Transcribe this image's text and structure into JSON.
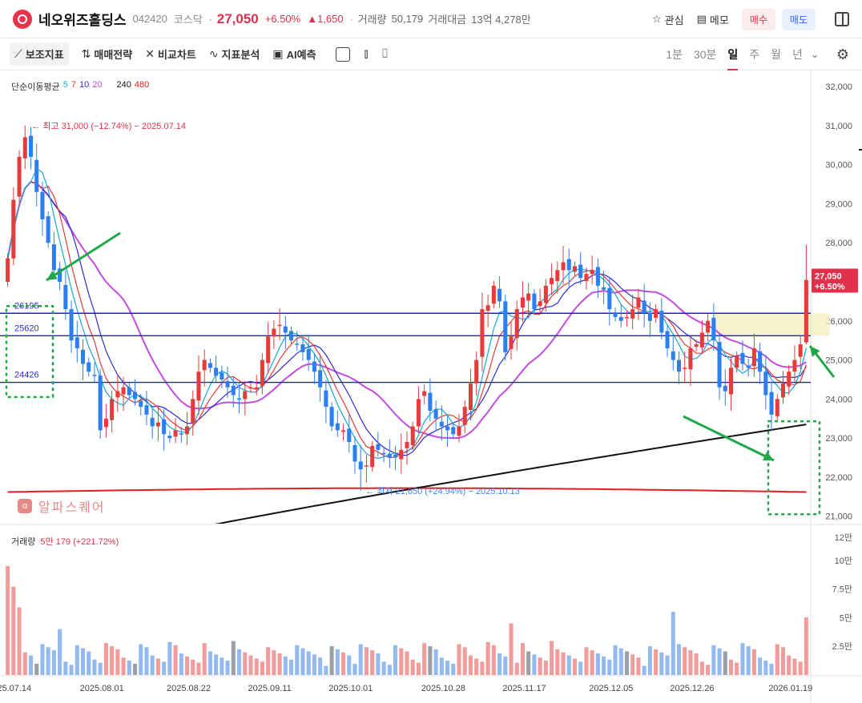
{
  "header": {
    "name": "네오위즈홀딩스",
    "code": "042420",
    "market": "코스닥",
    "price": "27,050",
    "change_pct": "+6.50%",
    "change_abs": "▲1,650",
    "volume_label": "거래량",
    "volume_value": "50,179",
    "amount_label": "거래대금",
    "amount_value": "13억 4,278만",
    "watch_label": "관심",
    "memo_label": "메모",
    "buy_label": "매수",
    "sell_label": "매도"
  },
  "toolbar": {
    "items": [
      "보조지표",
      "매매전략",
      "비교차트",
      "지표분석",
      "AI예측"
    ],
    "periods": [
      "1분",
      "30분",
      "일",
      "주",
      "월",
      "년"
    ],
    "active_period": "일"
  },
  "legend": {
    "ma_label": "단순이동평균",
    "ma_short": [
      "5",
      "7",
      "10",
      "20"
    ],
    "ma_long": [
      "240",
      "480"
    ],
    "ma_colors": [
      "#19a7d9",
      "#e63a35",
      "#2d2dcc",
      "#c24de0",
      "#111111",
      "#e01e1e"
    ],
    "volume_label": "거래량",
    "volume_value": "5만 179 (+221.72%)"
  },
  "watermark": {
    "text": "알파스퀘어"
  },
  "colors": {
    "up": "#e63b3b",
    "down": "#2b7ff0",
    "vol_up": "#f29b9b",
    "vol_down": "#94b9ee",
    "vol_flat": "#9aa0a6"
  },
  "chart_data": {
    "type": "candlestick",
    "ylim": [
      20800,
      32400
    ],
    "y_ticks": [
      "32,000",
      "31,000",
      "30,000",
      "29,000",
      "28,000",
      "27,000",
      "26,000",
      "25,000",
      "24,000",
      "23,000",
      "22,000",
      "21,000"
    ],
    "y_tick_values": [
      32000,
      31000,
      30000,
      29000,
      28000,
      27000,
      26000,
      25000,
      24000,
      23000,
      22000,
      21000
    ],
    "x_labels": [
      "2025.07.14",
      "2025.08.01",
      "2025.08.22",
      "2025.09.11",
      "2025.10.01",
      "2025.10.28",
      "2025.11.17",
      "2025.12.05",
      "2025.12.26",
      "2026.01.19"
    ],
    "x_label_index": [
      0,
      16,
      31,
      45,
      59,
      75,
      89,
      104,
      118,
      135
    ],
    "high_annotation": "최고 31,000 (−12.74%) − 2025.07.14",
    "low_annotation": "최저 21,650 (+24.94%) − 2025.10.13",
    "price_label": "27,050",
    "price_change_label": "+6.50%",
    "current_price": 27050,
    "levels": [
      {
        "label": "26195",
        "value": 26195
      },
      {
        "label": "25620",
        "value": 25620
      },
      {
        "label": "24426",
        "value": 24426
      }
    ],
    "zone": {
      "from_index": 122,
      "to_index": 142,
      "low": 25620,
      "high": 26195
    },
    "ma240": {
      "start": 19600,
      "end": 23350
    },
    "ma480": {
      "start": 21620,
      "mid": 21720,
      "end": 21620
    },
    "closes": [
      27600,
      29100,
      30200,
      30700,
      30200,
      29300,
      28600,
      28000,
      27300,
      27000,
      26300,
      25500,
      25300,
      24900,
      24700,
      24600,
      23200,
      23500,
      24000,
      24200,
      24300,
      24100,
      24000,
      23800,
      23600,
      23300,
      23400,
      23100,
      23000,
      23200,
      23100,
      23300,
      24000,
      24700,
      25000,
      24800,
      24600,
      24500,
      24300,
      24100,
      24000,
      24200,
      24300,
      24300,
      25000,
      25600,
      25800,
      25900,
      25700,
      25500,
      25400,
      25200,
      25000,
      24700,
      24300,
      23800,
      23300,
      23200,
      23200,
      22900,
      22400,
      22200,
      22300,
      22800,
      22700,
      22600,
      22500,
      22500,
      22700,
      22900,
      23300,
      24000,
      24200,
      23700,
      23500,
      23300,
      23200,
      23100,
      23300,
      23800,
      24400,
      25000,
      26300,
      26400,
      26900,
      26500,
      25200,
      25600,
      26300,
      26600,
      26700,
      26300,
      26500,
      26900,
      27100,
      27300,
      27500,
      27300,
      27400,
      27100,
      27200,
      27300,
      26900,
      26800,
      26300,
      26100,
      26000,
      26100,
      26300,
      26600,
      26200,
      26000,
      26300,
      25700,
      25300,
      25000,
      24700,
      24800,
      25300,
      25400,
      25700,
      26000,
      25500,
      24300,
      24200,
      24800,
      25100,
      24900,
      24800,
      25300,
      24700,
      24100,
      23600,
      24000,
      24400,
      24700,
      25000,
      25400,
      27050
    ]
  }
}
